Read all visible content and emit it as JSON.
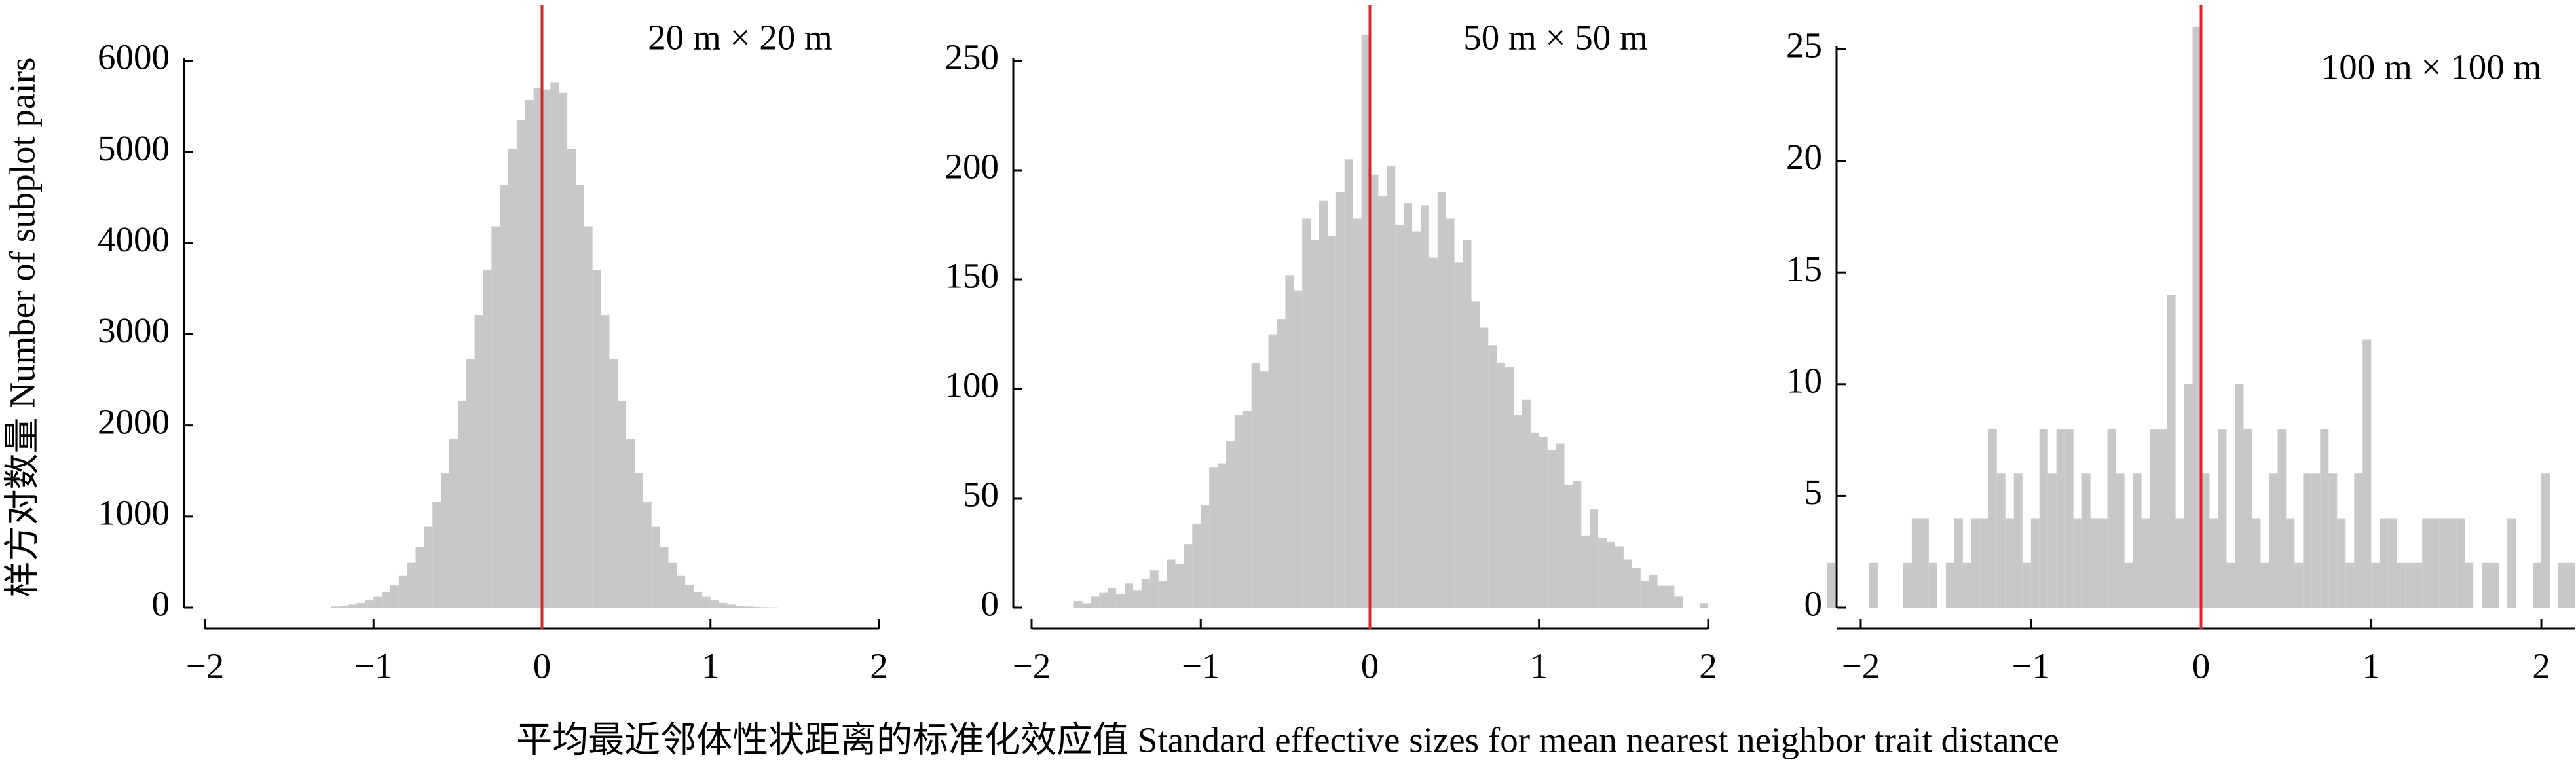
{
  "shared_axis_labels": {
    "y": "样方对数量 Number of subplot pairs",
    "x": "平均最近邻体性状距离的标准化效应值 Standard effective sizes for mean nearest neighbor trait distance"
  },
  "chart_data": [
    {
      "type": "histogram",
      "title": "20 m × 20 m",
      "color": "#c8c8c8",
      "vline": 0,
      "vline_color": "#d62728",
      "bins": [
        -1.25,
        -1.2,
        -1.15,
        -1.1,
        -1.05,
        -1,
        -0.95,
        -0.9,
        -0.85,
        -0.8,
        -0.75,
        -0.7,
        -0.65,
        -0.6,
        -0.55,
        -0.5,
        -0.45,
        -0.4,
        -0.35,
        -0.3,
        -0.25,
        -0.2,
        -0.15,
        -0.1,
        -0.05,
        0,
        0.05,
        0.1,
        0.15,
        0.2,
        0.25,
        0.3,
        0.35,
        0.4,
        0.45,
        0.5,
        0.55,
        0.6,
        0.65,
        0.7,
        0.75,
        0.8,
        0.85,
        0.9,
        0.95,
        1,
        1.05,
        1.1,
        1.15,
        1.2,
        1.25,
        1.3,
        1.35,
        1.4
      ],
      "values": [
        12,
        20,
        33,
        51,
        78,
        118,
        173,
        250,
        354,
        491,
        667,
        887,
        1157,
        1479,
        1851,
        2270,
        2727,
        3211,
        3705,
        4186,
        4636,
        5030,
        5347,
        5570,
        5700,
        5686,
        5760,
        5650,
        5030,
        4636,
        4186,
        3705,
        3211,
        2727,
        2270,
        1851,
        1479,
        1157,
        887,
        667,
        491,
        354,
        250,
        173,
        118,
        78,
        51,
        33,
        20,
        12,
        7,
        4,
        3
      ],
      "xlim": [
        -2,
        2
      ],
      "xticks": [
        {
          "value": -2,
          "label": "−2"
        },
        {
          "value": -1,
          "label": "−1"
        },
        0,
        1,
        2
      ],
      "ylim": [
        0,
        6000
      ],
      "yticks": [
        0,
        1000,
        2000,
        3000,
        4000,
        5000,
        6000
      ]
    },
    {
      "type": "histogram",
      "title": "50 m × 50 m",
      "color": "#c8c8c8",
      "vline": 0,
      "vline_color": "#d62728",
      "bins": [
        -1.75,
        -1.7,
        -1.65,
        -1.6,
        -1.55,
        -1.5,
        -1.45,
        -1.4,
        -1.35,
        -1.3,
        -1.25,
        -1.2,
        -1.15,
        -1.1,
        -1.05,
        -1,
        -0.95,
        -0.9,
        -0.85,
        -0.8,
        -0.75,
        -0.7,
        -0.65,
        -0.6,
        -0.55,
        -0.5,
        -0.45,
        -0.4,
        -0.35,
        -0.3,
        -0.25,
        -0.2,
        -0.15,
        -0.1,
        -0.05,
        0,
        0.05,
        0.1,
        0.15,
        0.2,
        0.25,
        0.3,
        0.35,
        0.4,
        0.45,
        0.5,
        0.55,
        0.6,
        0.65,
        0.7,
        0.75,
        0.8,
        0.85,
        0.9,
        0.95,
        1,
        1.05,
        1.1,
        1.15,
        1.2,
        1.25,
        1.3,
        1.35,
        1.4,
        1.45,
        1.5,
        1.55,
        1.6,
        1.65,
        1.7,
        1.75,
        1.8,
        1.85,
        1.9,
        1.95,
        2
      ],
      "values": [
        3,
        2,
        5,
        7,
        9,
        6,
        11,
        8,
        13,
        17,
        12,
        22,
        20,
        29,
        38,
        47,
        64,
        66,
        76,
        88,
        90,
        112,
        108,
        125,
        132,
        152,
        145,
        178,
        168,
        186,
        170,
        190,
        205,
        178,
        262,
        198,
        188,
        202,
        175,
        185,
        172,
        184,
        160,
        190,
        178,
        158,
        168,
        140,
        128,
        120,
        112,
        110,
        88,
        95,
        80,
        78,
        72,
        75,
        56,
        58,
        33,
        45,
        32,
        30,
        28,
        22,
        18,
        12,
        15,
        10,
        10,
        5,
        0,
        0,
        2
      ],
      "xlim": [
        -2,
        2
      ],
      "xticks": [
        {
          "value": -2,
          "label": "−2"
        },
        {
          "value": -1,
          "label": "−1"
        },
        0,
        1,
        2
      ],
      "ylim": [
        0,
        250
      ],
      "yticks": [
        0,
        50,
        100,
        150,
        200,
        250
      ]
    },
    {
      "type": "histogram",
      "title": "100 m × 100 m",
      "color": "#c8c8c8",
      "vline": 0,
      "vline_color": "#d62728",
      "bins": [
        -2.2,
        -2.15,
        -2.1,
        -2.05,
        -2,
        -1.95,
        -1.9,
        -1.85,
        -1.8,
        -1.75,
        -1.7,
        -1.65,
        -1.6,
        -1.55,
        -1.5,
        -1.45,
        -1.4,
        -1.35,
        -1.3,
        -1.25,
        -1.2,
        -1.15,
        -1.1,
        -1.05,
        -1,
        -0.95,
        -0.9,
        -0.85,
        -0.8,
        -0.75,
        -0.7,
        -0.65,
        -0.6,
        -0.55,
        -0.5,
        -0.45,
        -0.4,
        -0.35,
        -0.3,
        -0.25,
        -0.2,
        -0.15,
        -0.1,
        -0.05,
        0,
        0.05,
        0.1,
        0.15,
        0.2,
        0.25,
        0.3,
        0.35,
        0.4,
        0.45,
        0.5,
        0.55,
        0.6,
        0.65,
        0.7,
        0.75,
        0.8,
        0.85,
        0.9,
        0.95,
        1,
        1.05,
        1.1,
        1.15,
        1.2,
        1.25,
        1.3,
        1.35,
        1.4,
        1.45,
        1.5,
        1.55,
        1.6,
        1.65,
        1.7,
        1.75,
        1.8,
        1.85,
        1.9,
        1.95,
        2,
        2.05,
        2.1,
        2.15,
        2.2
      ],
      "values": [
        2,
        0,
        0,
        0,
        0,
        2,
        0,
        0,
        0,
        2,
        4,
        4,
        2,
        0,
        2,
        4,
        2,
        4,
        4,
        8,
        6,
        4,
        6,
        2,
        4,
        8,
        6,
        8,
        8,
        4,
        6,
        4,
        4,
        8,
        6,
        2,
        6,
        4,
        8,
        8,
        14,
        4,
        10,
        26,
        6,
        4,
        8,
        2,
        10,
        8,
        4,
        2,
        6,
        8,
        4,
        2,
        6,
        6,
        8,
        6,
        4,
        2,
        6,
        12,
        2,
        4,
        4,
        2,
        2,
        2,
        4,
        4,
        4,
        4,
        4,
        2,
        0,
        2,
        2,
        0,
        4,
        0,
        0,
        2,
        6,
        0,
        2,
        2
      ],
      "xlim": [
        -2.2,
        2.2
      ],
      "xticks": [
        {
          "value": -2,
          "label": "−2"
        },
        {
          "value": -1,
          "label": "−1"
        },
        0,
        1,
        2
      ],
      "ylim": [
        0,
        25
      ],
      "yticks": [
        0,
        5,
        10,
        15,
        20,
        25
      ]
    }
  ]
}
